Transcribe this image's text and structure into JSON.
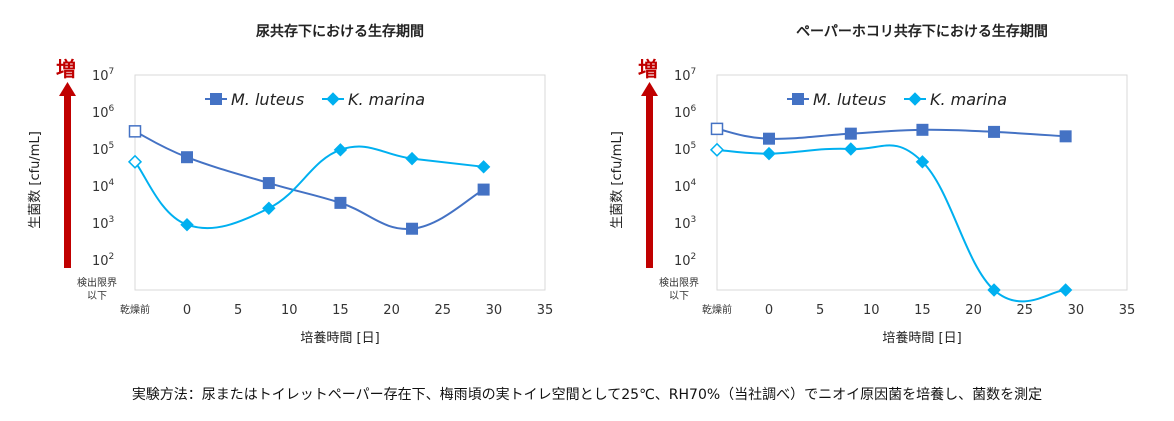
{
  "caption": "実験方法：尿またはトイレットペーパー存在下、梅雨頃の実トイレ空間として25℃、RH70%（当社調べ）でニオイ原因菌を培養し、菌数を測定",
  "colors": {
    "m_luteus": "#4472c4",
    "k_marina": "#00b0f0",
    "arrow": "#c00000",
    "grid": "#d9d9d9"
  },
  "chart_data": [
    {
      "type": "line",
      "title": "尿共存下における生存期間",
      "ylabel": "生菌数 [cfu/mL]",
      "xlabel": "培養時間 [日]",
      "increase_label": "増",
      "y_scale": "log",
      "ylim": [
        100,
        10000000
      ],
      "y_ticks": [
        {
          "base": "10",
          "exp": "7"
        },
        {
          "base": "10",
          "exp": "6"
        },
        {
          "base": "10",
          "exp": "5"
        },
        {
          "base": "10",
          "exp": "4"
        },
        {
          "base": "10",
          "exp": "3"
        },
        {
          "base": "10",
          "exp": "2"
        }
      ],
      "below_detection_label": [
        "検出限界",
        "以下"
      ],
      "before_drying_label": "乾燥前",
      "x_ticks": [
        "0",
        "5",
        "10",
        "15",
        "20",
        "25",
        "30",
        "35"
      ],
      "xlim": [
        0,
        35
      ],
      "legend_position": "top",
      "series": [
        {
          "name": "M. luteus",
          "marker": "square",
          "before_drying": 300000,
          "points": [
            [
              0,
              60000
            ],
            [
              8,
              12000
            ],
            [
              15,
              3500
            ],
            [
              22,
              700
            ],
            [
              29,
              8000
            ]
          ]
        },
        {
          "name": "K. marina",
          "marker": "diamond",
          "before_drying": 45000,
          "points": [
            [
              0,
              900
            ],
            [
              8,
              2500
            ],
            [
              15,
              95000
            ],
            [
              22,
              55000
            ],
            [
              29,
              33000
            ]
          ]
        }
      ]
    },
    {
      "type": "line",
      "title": "ペーパーホコリ共存下における生存期間",
      "ylabel": "生菌数 [cfu/mL]",
      "xlabel": "培養時間 [日]",
      "increase_label": "増",
      "y_scale": "log",
      "ylim": [
        100,
        10000000
      ],
      "y_ticks": [
        {
          "base": "10",
          "exp": "7"
        },
        {
          "base": "10",
          "exp": "6"
        },
        {
          "base": "10",
          "exp": "5"
        },
        {
          "base": "10",
          "exp": "4"
        },
        {
          "base": "10",
          "exp": "3"
        },
        {
          "base": "10",
          "exp": "2"
        }
      ],
      "below_detection_label": [
        "検出限界",
        "以下"
      ],
      "before_drying_label": "乾燥前",
      "x_ticks": [
        "0",
        "5",
        "10",
        "15",
        "20",
        "25",
        "30",
        "35"
      ],
      "xlim": [
        0,
        35
      ],
      "legend_position": "top",
      "series": [
        {
          "name": "M. luteus",
          "marker": "square",
          "before_drying": 350000,
          "points": [
            [
              0,
              190000
            ],
            [
              8,
              260000
            ],
            [
              15,
              330000
            ],
            [
              22,
              290000
            ],
            [
              29,
              220000
            ]
          ]
        },
        {
          "name": "K. marina",
          "marker": "diamond",
          "before_drying": 95000,
          "points": [
            [
              0,
              75000
            ],
            [
              8,
              100000
            ],
            [
              15,
              45000
            ],
            [
              22,
              "below_detection"
            ],
            [
              29,
              "below_detection"
            ]
          ]
        }
      ]
    }
  ]
}
